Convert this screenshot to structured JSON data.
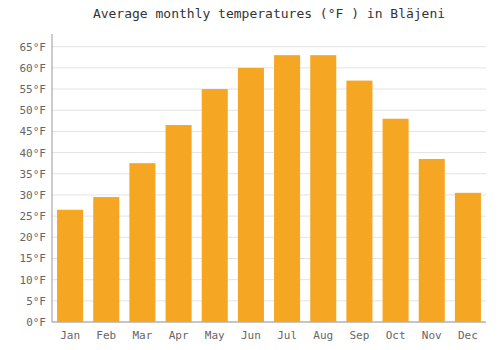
{
  "chart_data": {
    "type": "bar",
    "title": "Average monthly temperatures (°F ) in Blä​jeni",
    "categories": [
      "Jan",
      "Feb",
      "Mar",
      "Apr",
      "May",
      "Jun",
      "Jul",
      "Aug",
      "Sep",
      "Oct",
      "Nov",
      "Dec"
    ],
    "values": [
      26.5,
      29.5,
      37.5,
      46.5,
      55.0,
      60.0,
      63.0,
      63.0,
      57.0,
      48.0,
      38.5,
      30.5
    ],
    "color": "#F5A623",
    "ylim": [
      0,
      68
    ],
    "yticks": [
      {
        "value": 0,
        "label": "0°F"
      },
      {
        "value": 5,
        "label": "5°F"
      },
      {
        "value": 10,
        "label": "10°F"
      },
      {
        "value": 15,
        "label": "15°F"
      },
      {
        "value": 20,
        "label": "20°F"
      },
      {
        "value": 25,
        "label": "25°F"
      },
      {
        "value": 30,
        "label": "30°F"
      },
      {
        "value": 35,
        "label": "35°F"
      },
      {
        "value": 40,
        "label": "40°F"
      },
      {
        "value": 45,
        "label": "45°F"
      },
      {
        "value": 50,
        "label": "50°F"
      },
      {
        "value": 55,
        "label": "55°F"
      },
      {
        "value": 60,
        "label": "60°F"
      },
      {
        "value": 65,
        "label": "65°F"
      }
    ],
    "grid": true
  }
}
